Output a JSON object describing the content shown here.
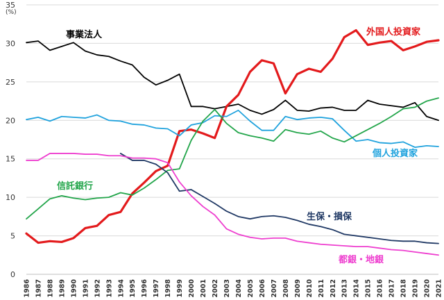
{
  "chart_data": {
    "type": "line",
    "unit_label": "(%)",
    "ylim": [
      0,
      35
    ],
    "y_ticks": [
      0,
      5,
      10,
      15,
      20,
      25,
      30,
      35
    ],
    "grid": true,
    "legend": "inline labels",
    "x": [
      "1986",
      "1987",
      "1988",
      "1989",
      "1990",
      "1991",
      "1992",
      "1993",
      "1994",
      "1995",
      "1996",
      "1997",
      "1998",
      "1999",
      "2000",
      "2001",
      "2002",
      "2003",
      "2004",
      "2005",
      "2006",
      "2007",
      "2008",
      "2009",
      "2010",
      "2011",
      "2012",
      "2013",
      "2014",
      "2015",
      "2016",
      "2017",
      "2018",
      "2019",
      "2020",
      "2021"
    ],
    "series": [
      {
        "name": "事業法人",
        "color": "#000000",
        "width": 1.8,
        "label_anchor": "start",
        "values": [
          30.1,
          30.3,
          29.1,
          29.6,
          30.1,
          29.0,
          28.5,
          28.3,
          27.7,
          27.2,
          25.6,
          24.6,
          25.2,
          26.0,
          21.8,
          21.8,
          21.5,
          21.8,
          22.1,
          21.3,
          20.8,
          21.4,
          22.6,
          21.3,
          21.2,
          21.6,
          21.7,
          21.3,
          21.3,
          22.6,
          22.1,
          21.9,
          21.7,
          22.3,
          20.5,
          20.0
        ]
      },
      {
        "name": "外国人投資家",
        "color": "#e31a1c",
        "width": 3.2,
        "label_anchor": "start",
        "values": [
          5.3,
          4.1,
          4.3,
          4.2,
          4.7,
          6.0,
          6.3,
          7.7,
          8.1,
          10.5,
          11.9,
          13.4,
          14.1,
          18.6,
          18.8,
          18.3,
          17.7,
          21.8,
          23.3,
          26.3,
          27.8,
          27.4,
          23.5,
          26.0,
          26.7,
          26.3,
          28.0,
          30.8,
          31.7,
          29.8,
          30.1,
          30.3,
          29.1,
          29.6,
          30.2,
          30.4
        ]
      },
      {
        "name": "個人投資家",
        "color": "#1fa2dd",
        "width": 1.8,
        "label_anchor": "start",
        "values": [
          20.1,
          20.4,
          19.9,
          20.5,
          20.4,
          20.3,
          20.7,
          20.0,
          19.9,
          19.5,
          19.4,
          19.0,
          18.9,
          18.0,
          19.4,
          19.7,
          20.6,
          20.5,
          21.3,
          19.9,
          18.7,
          18.7,
          20.5,
          20.1,
          20.3,
          20.4,
          20.2,
          18.7,
          17.3,
          17.5,
          17.1,
          17.0,
          17.2,
          16.5,
          16.7,
          16.6
        ]
      },
      {
        "name": "信託銀行",
        "color": "#22a54a",
        "width": 1.8,
        "label_anchor": "start",
        "values": [
          7.2,
          8.5,
          9.8,
          10.2,
          9.9,
          9.7,
          9.9,
          10.0,
          10.6,
          10.3,
          11.2,
          12.3,
          13.5,
          13.7,
          17.4,
          19.9,
          21.4,
          19.6,
          18.4,
          18.0,
          17.7,
          17.3,
          18.8,
          18.4,
          18.2,
          18.6,
          17.7,
          17.2,
          18.0,
          18.8,
          19.6,
          20.5,
          21.5,
          21.7,
          22.5,
          22.9
        ]
      },
      {
        "name": "生保・損保",
        "color": "#1f3864",
        "width": 1.8,
        "label_anchor": "start",
        "values": [
          null,
          null,
          null,
          null,
          null,
          null,
          null,
          null,
          15.7,
          14.8,
          14.8,
          14.3,
          13.2,
          10.8,
          11.0,
          10.1,
          9.2,
          8.2,
          7.5,
          7.2,
          7.5,
          7.6,
          7.4,
          7.0,
          6.5,
          6.2,
          5.8,
          5.2,
          5.0,
          4.8,
          4.6,
          4.4,
          4.3,
          4.3,
          4.1,
          4.0
        ]
      },
      {
        "name": "都銀・地銀",
        "color": "#ee3ecf",
        "width": 1.8,
        "label_anchor": "start",
        "values": [
          14.8,
          14.8,
          15.7,
          15.7,
          15.7,
          15.6,
          15.6,
          15.4,
          15.4,
          15.1,
          15.1,
          15.0,
          14.5,
          12.0,
          10.2,
          8.8,
          7.7,
          5.9,
          5.2,
          4.8,
          4.6,
          4.7,
          4.7,
          4.3,
          4.1,
          3.9,
          3.8,
          3.7,
          3.6,
          3.6,
          3.4,
          3.2,
          3.1,
          2.9,
          2.7,
          2.5
        ]
      }
    ]
  }
}
